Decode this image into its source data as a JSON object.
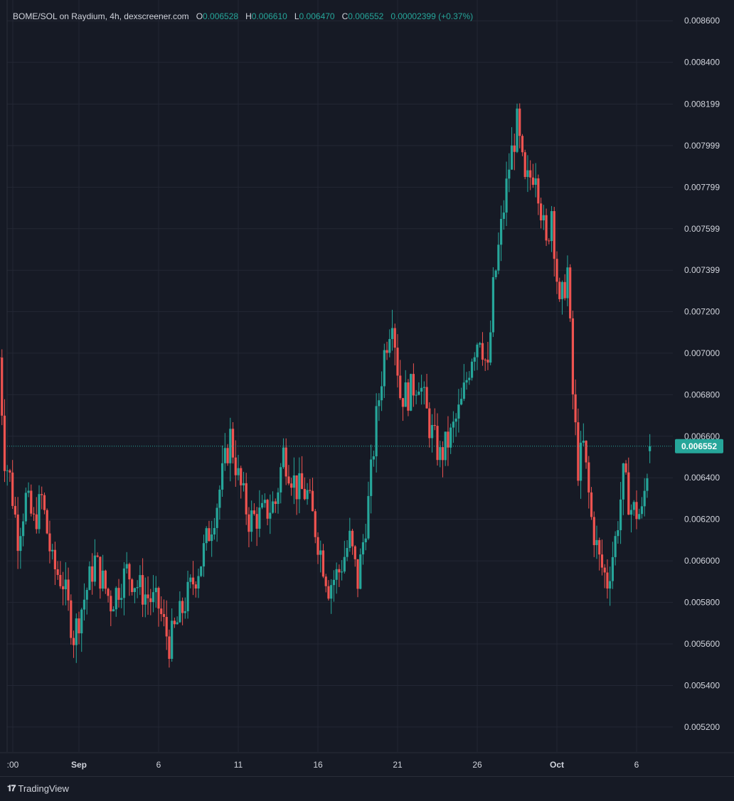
{
  "header": {
    "symbol_label": "BOME/SOL on Raydium, 4h, dexscreener.com",
    "open_key": "O",
    "open_value": "0.006528",
    "high_key": "H",
    "high_value": "0.006610",
    "low_key": "L",
    "low_value": "0.006470",
    "close_key": "C",
    "close_value": "0.006552",
    "change": "0.00002399 (+0.37%)"
  },
  "footer": {
    "brand": "TradingView",
    "logo_icon": "tradingview-logo-icon"
  },
  "colors": {
    "up": "#26a69a",
    "down": "#ef5350",
    "background": "#161a25",
    "grid": "#232734",
    "text": "#d1d4dc",
    "price_tag": "#26a69a"
  },
  "chart_data": {
    "type": "candlestick",
    "title": "BOME/SOL on Raydium, 4h, dexscreener.com",
    "y_ticks": [
      "0.008600",
      "0.008400",
      "0.008199",
      "0.007999",
      "0.007799",
      "0.007599",
      "0.007399",
      "0.007200",
      "0.007000",
      "0.006800",
      "0.006600",
      "0.006400",
      "0.006200",
      "0.006000",
      "0.005800",
      "0.005600",
      "0.005400",
      "0.005200"
    ],
    "x_ticks": [
      ":00",
      "Sep",
      "6",
      "11",
      "16",
      "21",
      "26",
      "Oct",
      "6"
    ],
    "ylim": [
      0.00508,
      0.0087
    ],
    "grid": true,
    "last_price": "0.006552",
    "last_price_value": 0.006552,
    "anchors": [
      [
        "2024-08-27 00:00",
        0.00698
      ],
      [
        "2024-08-27 08:00",
        0.0065
      ],
      [
        "2024-08-27 16:00",
        0.0064
      ],
      [
        "2024-08-28 04:00",
        0.00612
      ],
      [
        "2024-08-28 16:00",
        0.0063
      ],
      [
        "2024-08-29 04:00",
        0.00618
      ],
      [
        "2024-08-29 16:00",
        0.0063
      ],
      [
        "2024-08-30 08:00",
        0.00598
      ],
      [
        "2024-08-31 00:00",
        0.0059
      ],
      [
        "2024-08-31 16:00",
        0.00564
      ],
      [
        "2024-09-02 00:00",
        0.006
      ],
      [
        "2024-09-03 00:00",
        0.0058
      ],
      [
        "2024-09-04 00:00",
        0.00595
      ],
      [
        "2024-09-05 00:00",
        0.00585
      ],
      [
        "2024-09-06 00:00",
        0.00578
      ],
      [
        "2024-09-06 16:00",
        0.0056
      ],
      [
        "2024-09-07 16:00",
        0.0058
      ],
      [
        "2024-09-08 16:00",
        0.006
      ],
      [
        "2024-09-09 16:00",
        0.00628
      ],
      [
        "2024-09-10 12:00",
        0.0066
      ],
      [
        "2024-09-11 00:00",
        0.0064
      ],
      [
        "2024-09-11 16:00",
        0.0062
      ],
      [
        "2024-09-12 12:00",
        0.00622
      ],
      [
        "2024-09-13 08:00",
        0.00628
      ],
      [
        "2024-09-13 20:00",
        0.00652
      ],
      [
        "2024-09-14 16:00",
        0.00635
      ],
      [
        "2024-09-15 08:00",
        0.00632
      ],
      [
        "2024-09-16 00:00",
        0.0061
      ],
      [
        "2024-09-16 16:00",
        0.00588
      ],
      [
        "2024-09-17 08:00",
        0.00595
      ],
      [
        "2024-09-18 00:00",
        0.0061
      ],
      [
        "2024-09-18 12:00",
        0.0059
      ],
      [
        "2024-09-19 04:00",
        0.00628
      ],
      [
        "2024-09-19 16:00",
        0.00668
      ],
      [
        "2024-09-20 04:00",
        0.007
      ],
      [
        "2024-09-20 16:00",
        0.0072
      ],
      [
        "2024-09-21 04:00",
        0.0068
      ],
      [
        "2024-09-21 16:00",
        0.0068
      ],
      [
        "2024-09-22 08:00",
        0.00688
      ],
      [
        "2024-09-23 00:00",
        0.00665
      ],
      [
        "2024-09-23 16:00",
        0.0065
      ],
      [
        "2024-09-24 08:00",
        0.0066
      ],
      [
        "2024-09-25 00:00",
        0.00675
      ],
      [
        "2024-09-25 16:00",
        0.007
      ],
      [
        "2024-09-26 04:00",
        0.0071
      ],
      [
        "2024-09-26 16:00",
        0.0069
      ],
      [
        "2024-09-27 00:00",
        0.0073
      ],
      [
        "2024-09-27 12:00",
        0.0076
      ],
      [
        "2024-09-28 00:00",
        0.0079
      ],
      [
        "2024-09-28 12:00",
        0.0081
      ],
      [
        "2024-09-29 00:00",
        0.0078
      ],
      [
        "2024-09-29 16:00",
        0.0079
      ],
      [
        "2024-09-30 08:00",
        0.0075
      ],
      [
        "2024-09-30 16:00",
        0.0077
      ],
      [
        "2024-10-01 04:00",
        0.0072
      ],
      [
        "2024-10-01 16:00",
        0.0074
      ],
      [
        "2024-10-02 00:00",
        0.0068
      ],
      [
        "2024-10-02 08:00",
        0.00645
      ],
      [
        "2024-10-02 16:00",
        0.00655
      ],
      [
        "2024-10-03 04:00",
        0.0062
      ],
      [
        "2024-10-03 16:00",
        0.006
      ],
      [
        "2024-10-04 04:00",
        0.0059
      ],
      [
        "2024-10-04 16:00",
        0.0061
      ],
      [
        "2024-10-05 04:00",
        0.0064
      ],
      [
        "2024-10-05 16:00",
        0.00625
      ],
      [
        "2024-10-06 08:00",
        0.00622
      ],
      [
        "2024-10-06 20:00",
        0.00655
      ]
    ],
    "interval_hours": 4
  }
}
